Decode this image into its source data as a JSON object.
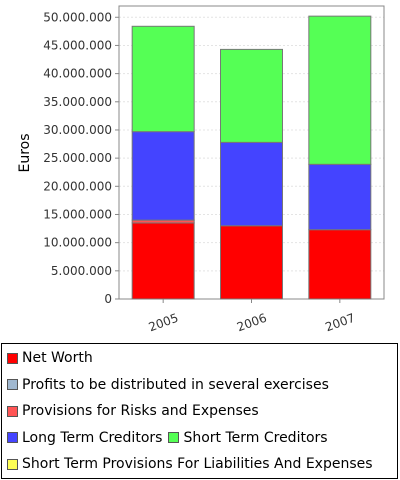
{
  "chart_data": {
    "type": "bar",
    "stacked": true,
    "categories": [
      "2005",
      "2006",
      "2007"
    ],
    "ylabel": "Euros",
    "ylim": [
      0,
      52000000
    ],
    "y_ticks": [
      0,
      5000000,
      10000000,
      15000000,
      20000000,
      25000000,
      30000000,
      35000000,
      40000000,
      45000000,
      50000000
    ],
    "y_tick_labels": [
      "0",
      "5.000.000",
      "10.000.000",
      "15.000.000",
      "20.000.000",
      "25.000.000",
      "30.000.000",
      "35.000.000",
      "40.000.000",
      "45.000.000",
      "50.000.000"
    ],
    "grid": true,
    "legend_position": "bottom",
    "series": [
      {
        "name": "Net Worth",
        "color": "#ff0000",
        "values": [
          13500000,
          13000000,
          12300000
        ]
      },
      {
        "name": "Profits to be distributed in several exercises",
        "color": "#a0b8d0",
        "values": [
          0,
          0,
          0
        ]
      },
      {
        "name": "Provisions for Risks and Expenses",
        "color": "#ff5555",
        "values": [
          500000,
          0,
          0
        ]
      },
      {
        "name": "Long Term Creditors",
        "color": "#4444ff",
        "values": [
          15700000,
          14800000,
          11600000
        ]
      },
      {
        "name": "Short Term Creditors",
        "color": "#55ff55",
        "values": [
          18700000,
          16500000,
          26300000
        ]
      },
      {
        "name": "Short Term Provisions For Liabilities And Expenses",
        "color": "#ffff55",
        "values": [
          0,
          0,
          0
        ]
      }
    ]
  },
  "legend": {
    "rows": [
      [
        "Net Worth"
      ],
      [
        "Profits to be distributed in several exercises"
      ],
      [
        "Provisions for Risks and Expenses"
      ],
      [
        "Long Term Creditors",
        "Short Term Creditors"
      ],
      [
        "Short Term Provisions For Liabilities And Expenses"
      ]
    ]
  }
}
